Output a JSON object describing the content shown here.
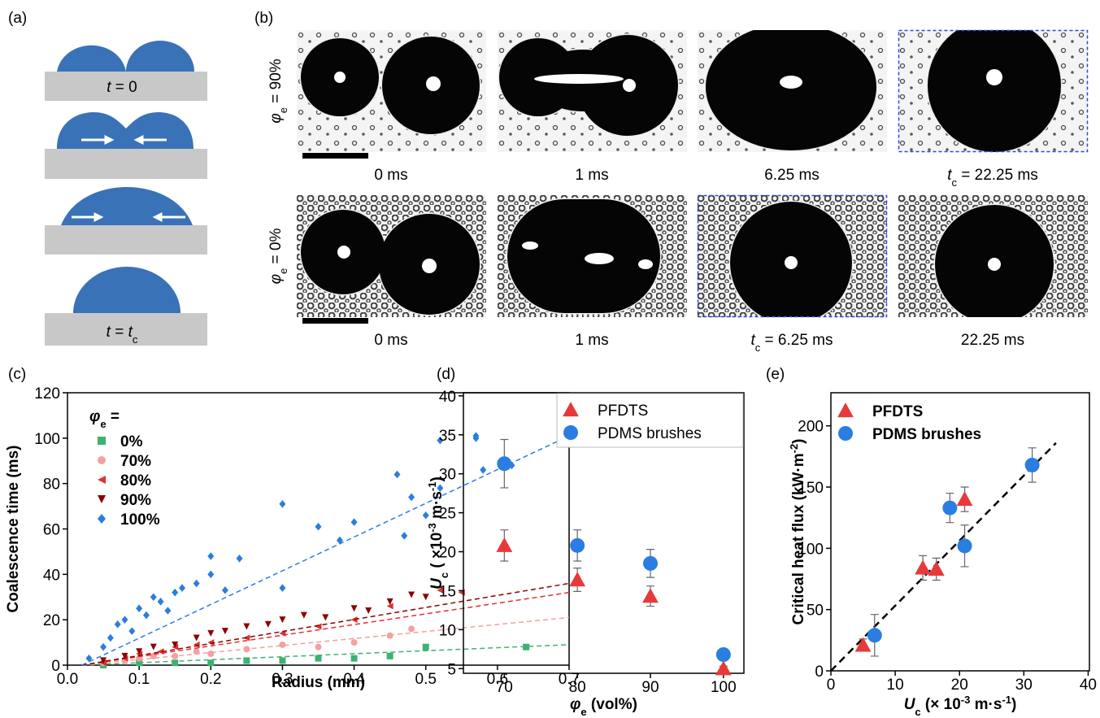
{
  "panel_labels": [
    "(a)",
    "(b)",
    "(c)",
    "(d)",
    "(e)"
  ],
  "panel_a": {
    "start": [
      "t",
      " = 0"
    ],
    "end": [
      "t",
      " = ",
      "t",
      "c"
    ]
  },
  "panel_b": {
    "rows": [
      {
        "label": [
          "φ",
          "e",
          " = 90%"
        ],
        "frames": [
          {
            "time": [
              "0 ms"
            ],
            "outlined": false
          },
          {
            "time": [
              "1 ms"
            ],
            "outlined": false
          },
          {
            "time": [
              "6.25 ms"
            ],
            "outlined": false
          },
          {
            "time": [
              "t",
              "c",
              " = 22.25 ms"
            ],
            "outlined": true
          }
        ]
      },
      {
        "label": [
          "φ",
          "e",
          " = 0%"
        ],
        "frames": [
          {
            "time": [
              "0 ms"
            ],
            "outlined": false
          },
          {
            "time": [
              "1 ms"
            ],
            "outlined": false
          },
          {
            "time": [
              "t",
              "c",
              " = 6.25 ms"
            ],
            "outlined": true
          },
          {
            "time": [
              "22.25 ms"
            ],
            "outlined": false
          }
        ]
      }
    ]
  },
  "chart_data": [
    {
      "type": "scatter",
      "xlabel": [
        "Radius (mm)"
      ],
      "ylabel": [
        "Coalescence time (ms)"
      ],
      "legend_title": [
        "φ",
        "e",
        " ="
      ],
      "xlim": [
        0,
        0.7
      ],
      "ylim": [
        0,
        120
      ],
      "xticks": [
        {
          "value": 0,
          "label": "0.0"
        },
        0.1,
        0.2,
        0.3,
        0.4,
        0.5,
        0.6,
        0.7
      ],
      "yticks": [
        0,
        20,
        40,
        60,
        80,
        100,
        120
      ],
      "series": [
        {
          "name": "0%",
          "color": "#3cb371",
          "marker": "square",
          "x": [
            0.05,
            0.1,
            0.15,
            0.2,
            0.25,
            0.3,
            0.35,
            0.4,
            0.45,
            0.5,
            0.64
          ],
          "y": [
            0,
            1,
            1,
            1,
            2,
            2,
            3,
            3,
            4,
            8,
            8
          ],
          "fit": {
            "x": [
              0.02,
              0.7
            ],
            "y": [
              0,
              9
            ]
          }
        },
        {
          "name": "70%",
          "color": "#f4a0a0",
          "marker": "circle",
          "x": [
            0.05,
            0.08,
            0.1,
            0.12,
            0.15,
            0.18,
            0.2,
            0.25,
            0.3,
            0.35,
            0.4,
            0.45,
            0.48
          ],
          "y": [
            1,
            2,
            3,
            4,
            4,
            6,
            5,
            7,
            9,
            8,
            10,
            13,
            16
          ],
          "fit": {
            "x": [
              0.02,
              0.7
            ],
            "y": [
              0,
              21
            ]
          }
        },
        {
          "name": "80%",
          "color": "#e03030",
          "marker": "tri-left",
          "x": [
            0.05,
            0.08,
            0.1,
            0.13,
            0.15,
            0.18,
            0.2,
            0.25,
            0.3,
            0.35,
            0.4,
            0.45,
            0.52,
            0.55
          ],
          "y": [
            1,
            3,
            5,
            6,
            8,
            9,
            10,
            12,
            14,
            17,
            20,
            26,
            33,
            32
          ],
          "fit": {
            "x": [
              0.02,
              0.7
            ],
            "y": [
              0,
              32
            ]
          }
        },
        {
          "name": "90%",
          "color": "#8b0000",
          "marker": "tri-down",
          "x": [
            0.05,
            0.08,
            0.1,
            0.12,
            0.15,
            0.18,
            0.2,
            0.22,
            0.25,
            0.28,
            0.3,
            0.33,
            0.36,
            0.4,
            0.42,
            0.45,
            0.48,
            0.5
          ],
          "y": [
            2,
            4,
            6,
            8,
            9,
            12,
            14,
            15,
            17,
            18,
            20,
            22,
            21,
            25,
            24,
            28,
            31,
            30
          ],
          "fit": {
            "x": [
              0.02,
              0.7
            ],
            "y": [
              0,
              36
            ]
          }
        },
        {
          "name": "100%",
          "color": "#2a7de1",
          "marker": "diamond",
          "x": [
            0.03,
            0.05,
            0.06,
            0.07,
            0.08,
            0.09,
            0.1,
            0.11,
            0.12,
            0.13,
            0.14,
            0.15,
            0.16,
            0.18,
            0.2,
            0.2,
            0.22,
            0.24,
            0.3,
            0.3,
            0.35,
            0.38,
            0.4,
            0.46,
            0.47,
            0.48,
            0.5,
            0.52,
            0.52,
            0.57,
            0.57,
            0.58,
            0.62
          ],
          "y": [
            3,
            8,
            12,
            18,
            20,
            15,
            25,
            22,
            30,
            28,
            24,
            32,
            34,
            36,
            48,
            40,
            33,
            47,
            71,
            34,
            61,
            55,
            63,
            84,
            57,
            74,
            66,
            99,
            78,
            100,
            101,
            86,
            88
          ],
          "fit": {
            "x": [
              0.02,
              0.7
            ],
            "y": [
              0,
              101
            ]
          }
        }
      ]
    },
    {
      "type": "errorbar",
      "xlabel": [
        "φ",
        "e",
        " (vol%)"
      ],
      "ylabel": [
        "U",
        "c",
        " ( ×10",
        "-3",
        " m·s",
        "-1",
        ")"
      ],
      "xlim": [
        64.4,
        102.8
      ],
      "ylim": [
        4.4,
        40.4
      ],
      "xticks": [
        70,
        80,
        90,
        100
      ],
      "yticks": [
        5,
        10,
        15,
        20,
        25,
        30,
        35,
        40
      ],
      "legend_box": true,
      "series": [
        {
          "name": "PFDTS",
          "color": "#e8393a",
          "marker": "tri-up",
          "x": [
            70,
            80,
            90,
            100
          ],
          "y": [
            20.8,
            16.4,
            14.3,
            5.0
          ],
          "err": [
            2.0,
            1.5,
            1.3,
            0.3
          ]
        },
        {
          "name": "PDMS brushes",
          "color": "#2a7de1",
          "marker": "circle",
          "x": [
            70,
            80,
            90,
            100
          ],
          "y": [
            31.3,
            20.8,
            18.5,
            6.8
          ],
          "err": [
            3.1,
            2.0,
            1.8,
            0.3
          ]
        }
      ]
    },
    {
      "type": "errorbar",
      "xlabel": [
        "U",
        "c",
        " (× 10",
        "-3",
        " m·s",
        "-1",
        ")"
      ],
      "ylabel": [
        "Critical heat flux (kW·m",
        "-2",
        ")"
      ],
      "xlim": [
        0,
        40.2
      ],
      "ylim": [
        0,
        227
      ],
      "xticks": [
        0,
        10,
        20,
        30,
        40
      ],
      "yticks": [
        0,
        50,
        100,
        150,
        200
      ],
      "legend_box": false,
      "fit": {
        "x": [
          0,
          35
        ],
        "y": [
          0,
          186
        ]
      },
      "series": [
        {
          "name": "PFDTS",
          "color": "#e8393a",
          "marker": "tri-up",
          "x": [
            5.0,
            14.3,
            16.4,
            20.8
          ],
          "y": [
            21,
            84,
            83,
            140
          ],
          "err": [
            5,
            10,
            9,
            10
          ]
        },
        {
          "name": "PDMS brushes",
          "color": "#2a7de1",
          "marker": "circle",
          "x": [
            6.8,
            18.5,
            20.8,
            31.3
          ],
          "y": [
            29,
            133,
            102,
            168
          ],
          "err": [
            17,
            12,
            17,
            14
          ]
        }
      ]
    }
  ]
}
